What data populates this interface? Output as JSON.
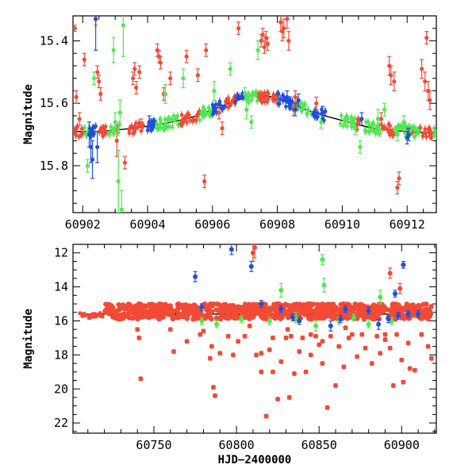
{
  "colors": {
    "red": "#f24a35",
    "green": "#4fe84f",
    "blue": "#1f4fe0",
    "model": "#000000"
  },
  "chart_data": [
    {
      "type": "scatter",
      "title": "",
      "xlabel": "",
      "ylabel": "Magnitude",
      "xlim": [
        60901.7,
        60912.9
      ],
      "ylim": [
        15.95,
        15.32
      ],
      "y_inverted": true,
      "xticks": [
        60902,
        60904,
        60906,
        60908,
        60910,
        60912
      ],
      "yticks": [
        15.4,
        15.6,
        15.8
      ],
      "model_curve": {
        "x": [
          60901.7,
          60902.5,
          60903.5,
          60904.5,
          60905.5,
          60906.5,
          60907.3,
          60908.0,
          60909.0,
          60910.0,
          60911.0,
          60912.0,
          60912.9
        ],
        "y": [
          15.69,
          15.69,
          15.68,
          15.665,
          15.64,
          15.6,
          15.575,
          15.585,
          15.625,
          15.655,
          15.68,
          15.69,
          15.695
        ]
      },
      "series": [
        {
          "color": "red",
          "x": [
            60901.75,
            60901.8,
            60901.9,
            60902.05,
            60902.4,
            60902.45,
            60902.5,
            60902.55,
            60903.05,
            60903.55,
            60903.6,
            60903.65,
            60903.75,
            60903.8,
            60904.3,
            60904.35,
            60904.4,
            60904.5,
            60904.7,
            60905.2,
            60905.55,
            60905.75,
            60906.2,
            60906.3,
            60907.5,
            60907.55,
            60907.6,
            60907.65,
            60907.7,
            60908.1,
            60908.15,
            60908.2,
            60908.3,
            60908.35,
            60908.55,
            60908.6,
            60911.45,
            60911.5,
            60911.6,
            60911.75,
            60911.7,
            60912.45,
            60912.55,
            60912.65,
            60912.7,
            60905.8,
            60906.8,
            60908.5,
            60912.6,
            60911.2,
            60909.2,
            60903.3
          ],
          "y": [
            15.36,
            15.58,
            15.65,
            15.46,
            15.33,
            15.5,
            15.53,
            15.57,
            15.72,
            15.52,
            15.49,
            15.55,
            15.5,
            15.67,
            15.43,
            15.45,
            15.47,
            15.57,
            15.52,
            15.45,
            15.51,
            15.85,
            15.63,
            15.68,
            15.4,
            15.38,
            15.42,
            15.39,
            15.41,
            15.34,
            15.37,
            15.36,
            15.33,
            15.4,
            15.58,
            15.6,
            15.48,
            15.51,
            15.53,
            15.84,
            15.87,
            15.49,
            15.53,
            15.56,
            15.59,
            15.43,
            15.36,
            15.62,
            15.39,
            15.65,
            15.6,
            15.79
          ],
          "err": [
            0.01,
            0.02,
            0.02,
            0.02,
            0.02,
            0.02,
            0.02,
            0.02,
            0.05,
            0.02,
            0.02,
            0.02,
            0.02,
            0.02,
            0.02,
            0.02,
            0.02,
            0.02,
            0.02,
            0.02,
            0.02,
            0.02,
            0.02,
            0.02,
            0.02,
            0.02,
            0.02,
            0.02,
            0.02,
            0.03,
            0.03,
            0.03,
            0.03,
            0.03,
            0.02,
            0.02,
            0.03,
            0.03,
            0.03,
            0.02,
            0.02,
            0.03,
            0.03,
            0.03,
            0.03,
            0.02,
            0.02,
            0.02,
            0.02,
            0.02,
            0.02,
            0.02
          ]
        },
        {
          "color": "green",
          "x": [
            60902.15,
            60902.35,
            60902.95,
            60903.0,
            60903.1,
            60903.15,
            60903.2,
            60903.25,
            60904.55,
            60905.1,
            60906.05,
            60906.55,
            60907.0,
            60907.05,
            60907.2,
            60907.4,
            60909.35,
            60910.4,
            60910.55,
            60911.1,
            60911.3,
            60911.7,
            60911.9
          ],
          "y": [
            15.8,
            15.52,
            15.43,
            15.66,
            15.85,
            15.63,
            15.94,
            15.35,
            15.57,
            15.52,
            15.56,
            15.49,
            15.57,
            15.62,
            15.66,
            15.43,
            15.66,
            15.68,
            15.74,
            15.65,
            15.62,
            15.7,
            15.66
          ],
          "err": [
            0.02,
            0.02,
            0.04,
            0.03,
            0.1,
            0.04,
            0.06,
            0.1,
            0.03,
            0.03,
            0.03,
            0.02,
            0.02,
            0.03,
            0.02,
            0.03,
            0.02,
            0.02,
            0.02,
            0.03,
            0.02,
            0.02,
            0.02
          ]
        },
        {
          "color": "blue",
          "x": [
            60902.2,
            60902.25,
            60902.3,
            60902.4,
            60902.45,
            60904.05,
            60904.1,
            60908.3,
            60908.4,
            60908.55,
            60908.65,
            60909.4,
            60910.6,
            60912.0,
            60912.05
          ],
          "y": [
            15.7,
            15.74,
            15.78,
            15.33,
            15.74,
            15.66,
            15.67,
            15.58,
            15.6,
            15.62,
            15.59,
            15.63,
            15.65,
            15.71,
            15.7
          ],
          "err": [
            0.04,
            0.05,
            0.06,
            0.1,
            0.05,
            0.02,
            0.02,
            0.02,
            0.02,
            0.02,
            0.02,
            0.02,
            0.02,
            0.02,
            0.02
          ]
        }
      ]
    },
    {
      "type": "scatter",
      "title": "",
      "xlabel": "HJD−2400000",
      "ylabel": "Magnitude",
      "xlim": [
        60701,
        60921
      ],
      "ylim": [
        22.6,
        11.5
      ],
      "y_inverted": true,
      "xticks": [
        60750,
        60800,
        60850,
        60900
      ],
      "yticks": [
        12,
        14,
        16,
        18,
        20,
        22
      ],
      "model_line": {
        "x": [
          60705,
          60919
        ],
        "y": [
          15.6,
          15.6
        ]
      },
      "series": [
        {
          "color": "red",
          "x": [
            60711,
            60741,
            60742,
            60762,
            60770,
            60778,
            60784,
            60786,
            60787,
            60790,
            60798,
            60801,
            60805,
            60810,
            60811,
            60812,
            60815,
            60818,
            60820,
            60822,
            60825,
            60827,
            60830,
            60832,
            60835,
            60838,
            60840,
            60842,
            60845,
            60848,
            60850,
            60852,
            60855,
            60857,
            60860,
            60862,
            60865,
            60868,
            60870,
            60873,
            60878,
            60882,
            60885,
            60887,
            60890,
            60893,
            60895,
            60897,
            60899,
            60901,
            60904,
            60908,
            60912,
            60916,
            60740,
            60785,
            60808,
            60822,
            60831,
            60852,
            60876,
            60893,
            60900,
            60918,
            60760,
            60795,
            60815,
            60845,
            60866,
            60890,
            60905,
            60780,
            60833
          ],
          "y": [
            15.8,
            17.0,
            19.4,
            17.8,
            17.2,
            16.8,
            18.2,
            19.9,
            20.4,
            17.9,
            18.0,
            17.2,
            16.9,
            12.0,
            11.7,
            18.0,
            19.0,
            21.6,
            17.7,
            19.0,
            20.6,
            18.4,
            17.0,
            20.5,
            19.1,
            17.8,
            17.0,
            19.0,
            18.0,
            16.9,
            17.4,
            18.5,
            21.1,
            16.9,
            19.8,
            17.5,
            18.7,
            17.0,
            16.8,
            18.1,
            17.6,
            18.5,
            16.9,
            17.9,
            16.8,
            13.2,
            19.8,
            16.8,
            14.1,
            19.6,
            17.3,
            18.9,
            16.8,
            17.5,
            16.5,
            17.5,
            16.3,
            17.0,
            16.5,
            17.2,
            16.8,
            17.6,
            18.3,
            18.2,
            16.5,
            16.9,
            17.9,
            16.8,
            16.4,
            17.1,
            18.8,
            16.6,
            16.9
          ],
          "err": [
            0.1,
            0.1,
            0.1,
            0.1,
            0.1,
            0.1,
            0.1,
            0.1,
            0.1,
            0.1,
            0.1,
            0.1,
            0.1,
            0.5,
            0.6,
            0.1,
            0.1,
            0.1,
            0.1,
            0.1,
            0.1,
            0.1,
            0.1,
            0.1,
            0.1,
            0.1,
            0.1,
            0.1,
            0.1,
            0.1,
            0.1,
            0.1,
            0.1,
            0.1,
            0.1,
            0.1,
            0.1,
            0.1,
            0.1,
            0.1,
            0.1,
            0.1,
            0.1,
            0.1,
            0.1,
            0.3,
            0.1,
            0.1,
            0.3,
            0.1,
            0.1,
            0.1,
            0.1,
            0.1,
            0.1,
            0.1,
            0.1,
            0.1,
            0.1,
            0.1,
            0.1,
            0.1,
            0.1,
            0.1,
            0.1,
            0.1,
            0.1,
            0.1,
            0.1,
            0.1,
            0.1,
            0.1,
            0.1
          ]
        },
        {
          "color": "green",
          "x": [
            60779,
            60788,
            60803,
            60820,
            60827,
            60836,
            60848,
            60852,
            60853,
            60862,
            60871,
            60880,
            60887,
            60894
          ],
          "y": [
            16.0,
            16.2,
            15.9,
            16.0,
            14.2,
            15.8,
            16.3,
            12.4,
            13.9,
            16.0,
            15.8,
            16.2,
            14.6,
            16.0
          ],
          "err": [
            0.2,
            0.2,
            0.2,
            0.2,
            0.4,
            0.3,
            0.3,
            0.3,
            0.4,
            0.2,
            0.2,
            0.2,
            0.4,
            0.2
          ]
        },
        {
          "color": "blue",
          "x": [
            60775,
            60779,
            60797,
            60809,
            60815,
            60827,
            60834,
            60838,
            60857,
            60863,
            60866,
            60880,
            60886,
            60892,
            60896,
            60898,
            60901,
            60904,
            60910
          ],
          "y": [
            13.4,
            15.2,
            11.8,
            12.8,
            15.0,
            15.3,
            15.8,
            16.0,
            16.3,
            15.9,
            15.3,
            15.4,
            16.2,
            15.9,
            14.4,
            15.7,
            12.7,
            15.6,
            15.6
          ],
          "err": [
            0.3,
            0.2,
            0.3,
            0.3,
            0.2,
            0.2,
            0.2,
            0.2,
            0.3,
            0.2,
            0.2,
            0.2,
            0.3,
            0.2,
            0.2,
            0.2,
            0.2,
            0.2,
            0.2
          ]
        }
      ],
      "dense_band": {
        "color": "red",
        "x_range": [
          60720,
          60918
        ],
        "y_center": 15.45,
        "y_spread": 0.45
      }
    }
  ]
}
